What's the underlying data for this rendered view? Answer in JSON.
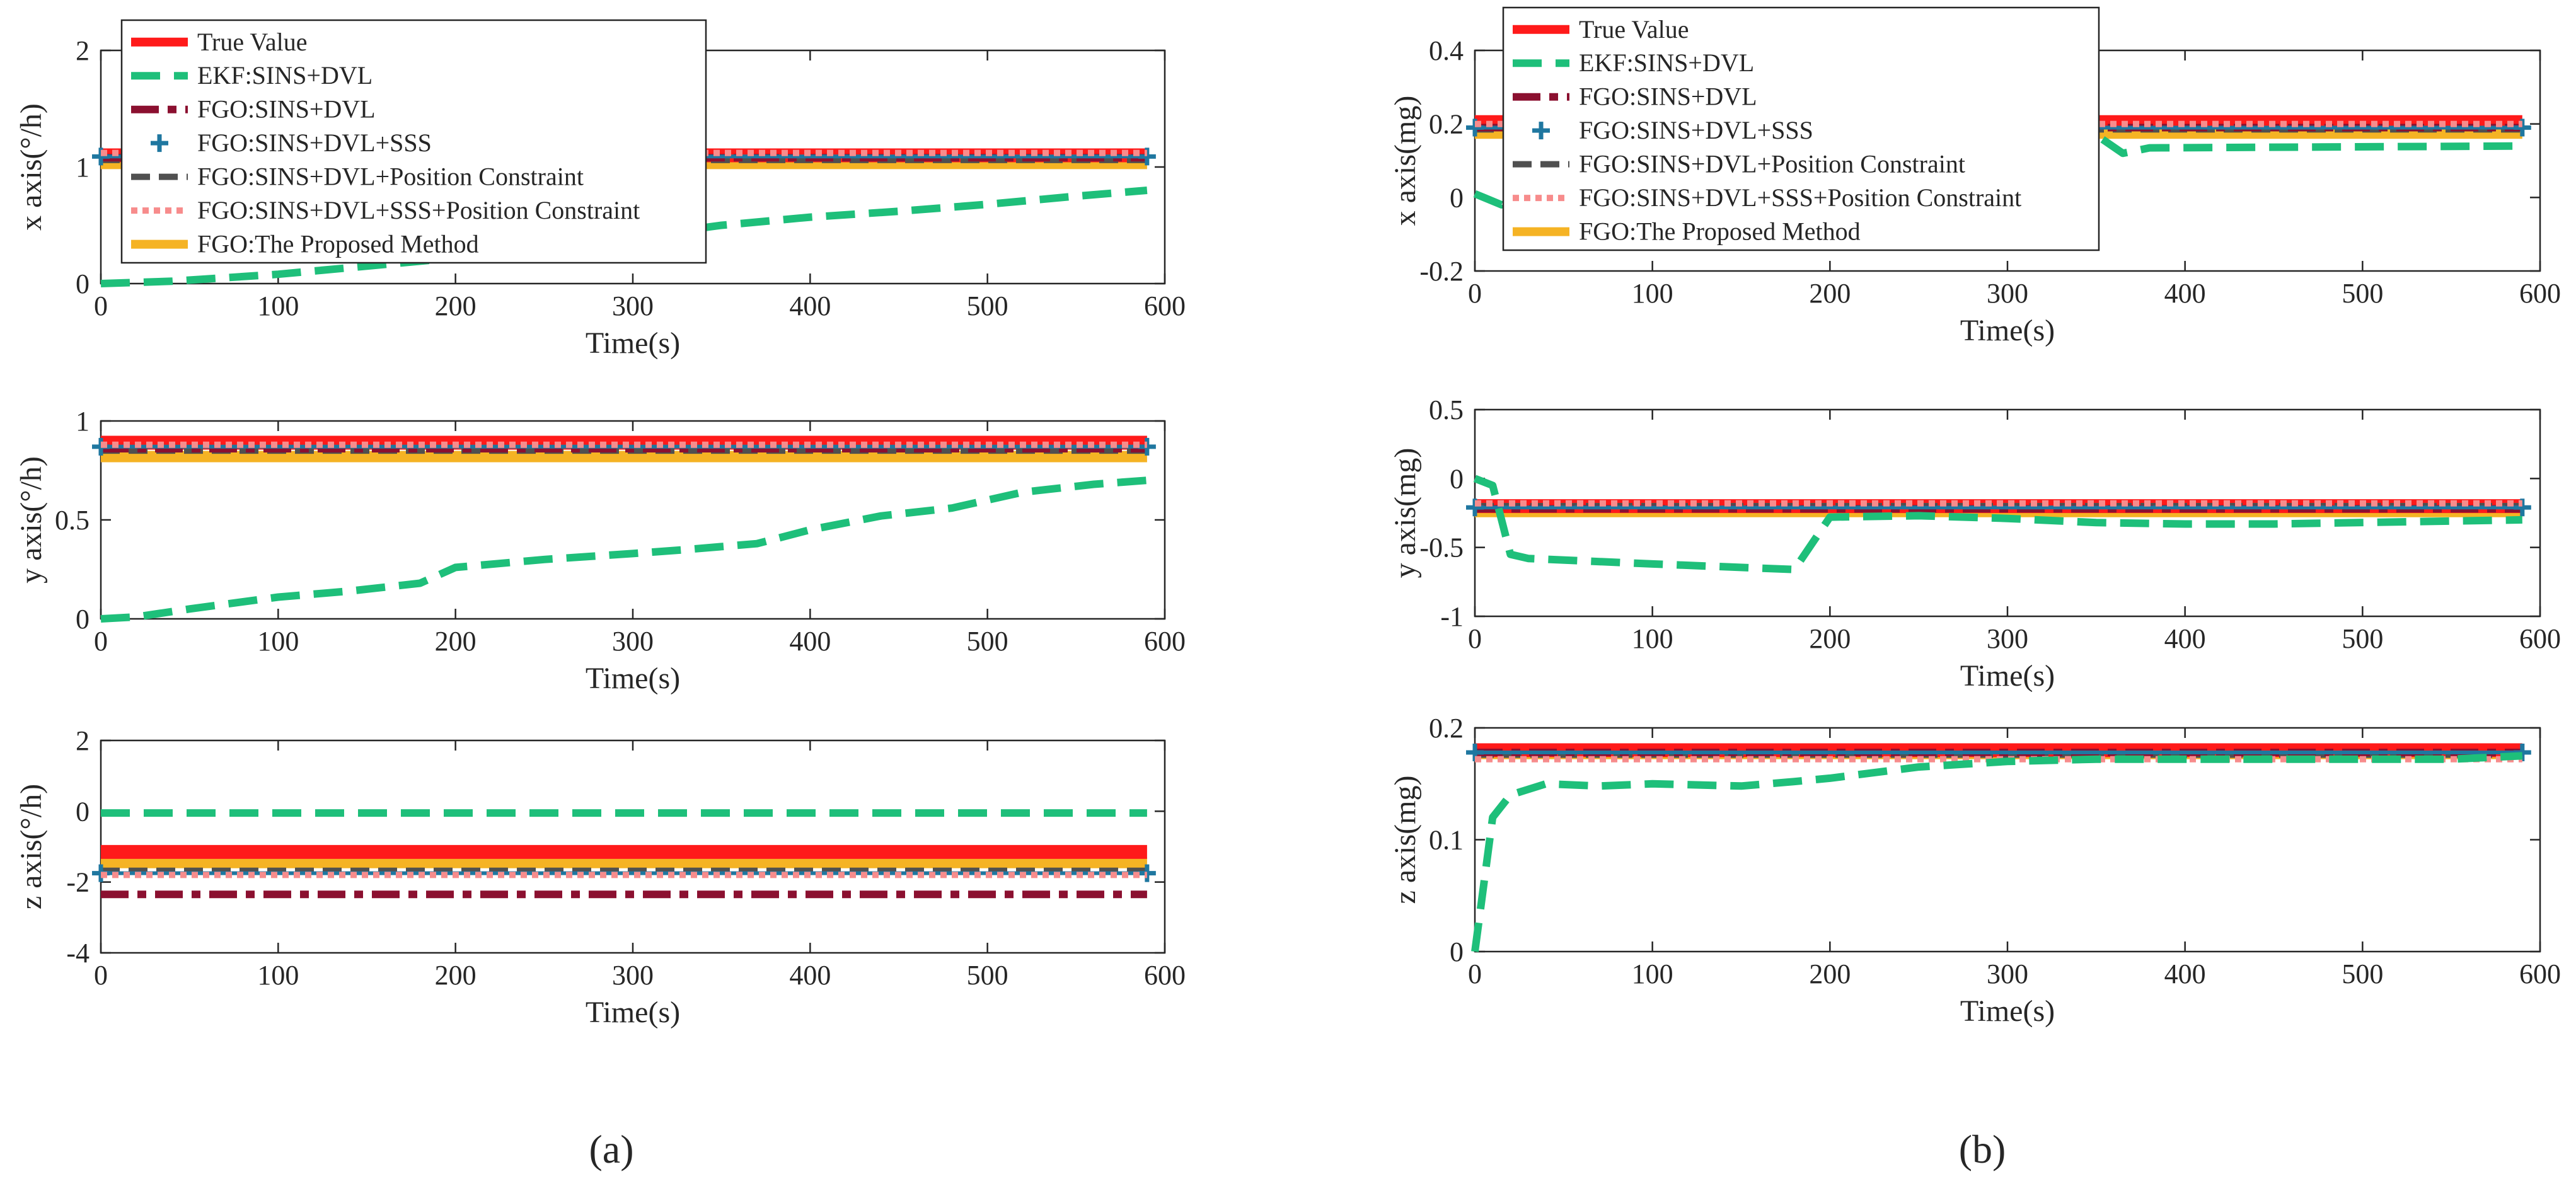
{
  "figure_labels": [
    "(a)",
    "(b)"
  ],
  "colors": {
    "true_value": "#ff1a1a",
    "ekf": "#1ebf7a",
    "fgo_dvl": "#8b1030",
    "fgo_sss": "#1f77a0",
    "fgo_pos": "#505050",
    "fgo_sss_pos": "#f78c8c",
    "proposed": "#f5b324"
  },
  "legend": [
    "True Value",
    "EKF:SINS+DVL",
    "FGO:SINS+DVL",
    "FGO:SINS+DVL+SSS",
    "FGO:SINS+DVL+Position Constraint",
    "FGO:SINS+DVL+SSS+Position Constraint",
    "FGO:The Proposed Method"
  ],
  "chart_data": [
    {
      "type": "line",
      "title": "",
      "xlabel": "Time(s)",
      "ylabel": "x axis(°/h)",
      "xlim": [
        0,
        600
      ],
      "ylim": [
        0,
        2
      ],
      "xticks": [
        "0",
        "100",
        "200",
        "300",
        "400",
        "500",
        "600"
      ],
      "yticks": [
        "0",
        "1",
        "2"
      ],
      "legend": true,
      "legend_location": "top-left",
      "series": [
        {
          "name": "True Value",
          "x": [
            0,
            590
          ],
          "y": [
            1.1,
            1.1
          ]
        },
        {
          "name": "EKF:SINS+DVL",
          "x": [
            0,
            40,
            100,
            150,
            200,
            250,
            300,
            350,
            400,
            450,
            500,
            550,
            590
          ],
          "y": [
            0,
            0.02,
            0.08,
            0.15,
            0.22,
            0.3,
            0.4,
            0.5,
            0.57,
            0.62,
            0.68,
            0.75,
            0.8
          ]
        },
        {
          "name": "FGO:SINS+DVL",
          "x": [
            0,
            590
          ],
          "y": [
            1.08,
            1.08
          ]
        },
        {
          "name": "FGO:SINS+DVL+SSS",
          "x": [
            0,
            590
          ],
          "y": [
            1.09,
            1.09
          ]
        },
        {
          "name": "FGO:SINS+DVL+Position Constraint",
          "x": [
            0,
            590
          ],
          "y": [
            1.06,
            1.06
          ]
        },
        {
          "name": "FGO:SINS+DVL+SSS+Position Constraint",
          "x": [
            0,
            590
          ],
          "y": [
            1.12,
            1.12
          ]
        },
        {
          "name": "FGO:The Proposed Method",
          "x": [
            0,
            590
          ],
          "y": [
            1.03,
            1.03
          ]
        }
      ]
    },
    {
      "type": "line",
      "title": "",
      "xlabel": "Time(s)",
      "ylabel": "y axis(°/h)",
      "xlim": [
        0,
        600
      ],
      "ylim": [
        0,
        1
      ],
      "xticks": [
        "0",
        "100",
        "200",
        "300",
        "400",
        "500",
        "600"
      ],
      "yticks": [
        "0",
        "0.5",
        "1"
      ],
      "legend": false,
      "series": [
        {
          "name": "True Value",
          "x": [
            0,
            590
          ],
          "y": [
            0.89,
            0.89
          ]
        },
        {
          "name": "EKF:SINS+DVL",
          "x": [
            0,
            20,
            50,
            100,
            140,
            180,
            200,
            250,
            300,
            330,
            370,
            400,
            440,
            480,
            520,
            560,
            590
          ],
          "y": [
            0,
            0.01,
            0.05,
            0.11,
            0.14,
            0.18,
            0.26,
            0.3,
            0.33,
            0.35,
            0.38,
            0.45,
            0.52,
            0.56,
            0.64,
            0.68,
            0.7
          ]
        },
        {
          "name": "FGO:SINS+DVL",
          "x": [
            0,
            590
          ],
          "y": [
            0.86,
            0.86
          ]
        },
        {
          "name": "FGO:SINS+DVL+SSS",
          "x": [
            0,
            590
          ],
          "y": [
            0.87,
            0.87
          ]
        },
        {
          "name": "FGO:SINS+DVL+Position Constraint",
          "x": [
            0,
            590
          ],
          "y": [
            0.85,
            0.85
          ]
        },
        {
          "name": "FGO:SINS+DVL+SSS+Position Constraint",
          "x": [
            0,
            590
          ],
          "y": [
            0.88,
            0.88
          ]
        },
        {
          "name": "FGO:The Proposed Method",
          "x": [
            0,
            590
          ],
          "y": [
            0.82,
            0.82
          ]
        }
      ]
    },
    {
      "type": "line",
      "title": "",
      "xlabel": "Time(s)",
      "ylabel": "z axis(°/h)",
      "xlim": [
        0,
        600
      ],
      "ylim": [
        -4,
        2
      ],
      "xticks": [
        "0",
        "100",
        "200",
        "300",
        "400",
        "500",
        "600"
      ],
      "yticks": [
        "-4",
        "-2",
        "0",
        "2"
      ],
      "legend": false,
      "series": [
        {
          "name": "True Value",
          "x": [
            0,
            590
          ],
          "y": [
            -1.15,
            -1.15
          ]
        },
        {
          "name": "EKF:SINS+DVL",
          "x": [
            0,
            590
          ],
          "y": [
            -0.05,
            -0.05
          ]
        },
        {
          "name": "FGO:SINS+DVL",
          "x": [
            0,
            590
          ],
          "y": [
            -2.35,
            -2.35
          ]
        },
        {
          "name": "FGO:SINS+DVL+SSS",
          "x": [
            0,
            590
          ],
          "y": [
            -1.75,
            -1.75
          ]
        },
        {
          "name": "FGO:SINS+DVL+Position Constraint",
          "x": [
            0,
            590
          ],
          "y": [
            -1.68,
            -1.68
          ]
        },
        {
          "name": "FGO:SINS+DVL+SSS+Position Constraint",
          "x": [
            0,
            590
          ],
          "y": [
            -1.8,
            -1.8
          ]
        },
        {
          "name": "FGO:The Proposed Method",
          "x": [
            0,
            590
          ],
          "y": [
            -1.45,
            -1.45
          ]
        }
      ]
    },
    {
      "type": "line",
      "title": "",
      "xlabel": "Time(s)",
      "ylabel": "x axis(mg)",
      "xlim": [
        0,
        600
      ],
      "ylim": [
        -0.2,
        0.4
      ],
      "xticks": [
        "0",
        "100",
        "200",
        "300",
        "400",
        "500",
        "600"
      ],
      "yticks": [
        "-0.2",
        "0",
        "0.2",
        "0.4"
      ],
      "legend": true,
      "legend_location": "top-left",
      "series": [
        {
          "name": "True Value",
          "x": [
            0,
            590
          ],
          "y": [
            0.205,
            0.205
          ]
        },
        {
          "name": "EKF:SINS+DVL",
          "x": [
            0,
            5,
            15,
            20,
            25,
            350,
            365,
            380,
            590
          ],
          "y": [
            0.01,
            0,
            -0.02,
            0.05,
            0.17,
            0.17,
            0.12,
            0.135,
            0.14
          ]
        },
        {
          "name": "FGO:SINS+DVL",
          "x": [
            0,
            590
          ],
          "y": [
            0.19,
            0.19
          ]
        },
        {
          "name": "FGO:SINS+DVL+SSS",
          "x": [
            0,
            590
          ],
          "y": [
            0.19,
            0.19
          ]
        },
        {
          "name": "FGO:SINS+DVL+Position Constraint",
          "x": [
            0,
            590
          ],
          "y": [
            0.185,
            0.185
          ]
        },
        {
          "name": "FGO:SINS+DVL+SSS+Position Constraint",
          "x": [
            0,
            590
          ],
          "y": [
            0.2,
            0.2
          ]
        },
        {
          "name": "FGO:The Proposed Method",
          "x": [
            0,
            590
          ],
          "y": [
            0.175,
            0.175
          ]
        }
      ]
    },
    {
      "type": "line",
      "title": "",
      "xlabel": "Time(s)",
      "ylabel": "y axis(mg)",
      "xlim": [
        0,
        600
      ],
      "ylim": [
        -1,
        0.5
      ],
      "xticks": [
        "0",
        "100",
        "200",
        "300",
        "400",
        "500",
        "600"
      ],
      "yticks": [
        "-1",
        "-0.5",
        "0",
        "0.5"
      ],
      "legend": false,
      "series": [
        {
          "name": "True Value",
          "x": [
            0,
            590
          ],
          "y": [
            -0.2,
            -0.2
          ]
        },
        {
          "name": "EKF:SINS+DVL",
          "x": [
            0,
            10,
            15,
            20,
            30,
            100,
            180,
            200,
            250,
            300,
            350,
            400,
            450,
            590
          ],
          "y": [
            0,
            -0.05,
            -0.3,
            -0.55,
            -0.58,
            -0.62,
            -0.66,
            -0.28,
            -0.27,
            -0.29,
            -0.32,
            -0.33,
            -0.33,
            -0.3
          ]
        },
        {
          "name": "FGO:SINS+DVL",
          "x": [
            0,
            590
          ],
          "y": [
            -0.22,
            -0.22
          ]
        },
        {
          "name": "FGO:SINS+DVL+SSS",
          "x": [
            0,
            590
          ],
          "y": [
            -0.21,
            -0.21
          ]
        },
        {
          "name": "FGO:SINS+DVL+Position Constraint",
          "x": [
            0,
            590
          ],
          "y": [
            -0.2,
            -0.2
          ]
        },
        {
          "name": "FGO:SINS+DVL+SSS+Position Constraint",
          "x": [
            0,
            590
          ],
          "y": [
            -0.18,
            -0.18
          ]
        },
        {
          "name": "FGO:The Proposed Method",
          "x": [
            0,
            590
          ],
          "y": [
            -0.24,
            -0.24
          ]
        }
      ]
    },
    {
      "type": "line",
      "title": "",
      "xlabel": "Time(s)",
      "ylabel": "z axis(mg)",
      "xlim": [
        0,
        600
      ],
      "ylim": [
        0,
        0.2
      ],
      "xticks": [
        "0",
        "100",
        "200",
        "300",
        "400",
        "500",
        "600"
      ],
      "yticks": [
        "0",
        "0.1",
        "0.2"
      ],
      "legend": false,
      "series": [
        {
          "name": "True Value",
          "x": [
            0,
            590
          ],
          "y": [
            0.18,
            0.18
          ]
        },
        {
          "name": "EKF:SINS+DVL",
          "x": [
            0,
            5,
            10,
            20,
            40,
            70,
            100,
            150,
            180,
            200,
            250,
            300,
            350,
            400,
            450,
            500,
            550,
            590
          ],
          "y": [
            0,
            0.06,
            0.12,
            0.14,
            0.15,
            0.148,
            0.15,
            0.148,
            0.152,
            0.155,
            0.165,
            0.17,
            0.172,
            0.172,
            0.172,
            0.172,
            0.172,
            0.175
          ]
        },
        {
          "name": "FGO:SINS+DVL",
          "x": [
            0,
            590
          ],
          "y": [
            0.178,
            0.178
          ]
        },
        {
          "name": "FGO:SINS+DVL+SSS",
          "x": [
            0,
            590
          ],
          "y": [
            0.178,
            0.178
          ]
        },
        {
          "name": "FGO:SINS+DVL+Position Constraint",
          "x": [
            0,
            590
          ],
          "y": [
            0.176,
            0.176
          ]
        },
        {
          "name": "FGO:SINS+DVL+SSS+Position Constraint",
          "x": [
            0,
            590
          ],
          "y": [
            0.172,
            0.172
          ]
        },
        {
          "name": "FGO:The Proposed Method",
          "x": [
            0,
            590
          ],
          "y": [
            0.177,
            0.177
          ]
        }
      ]
    }
  ]
}
